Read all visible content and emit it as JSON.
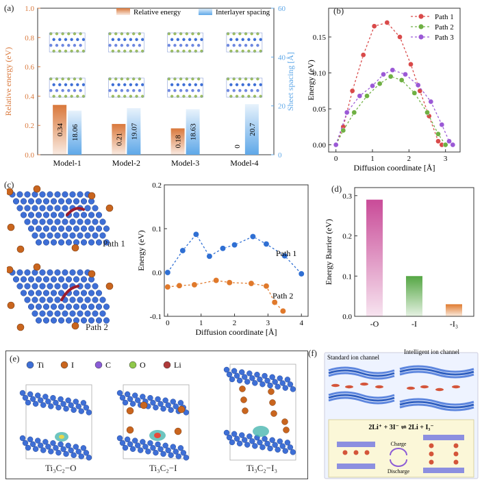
{
  "panel_labels": {
    "a": "(a)",
    "b": "(b)",
    "c": "(c)",
    "d": "(d)",
    "e": "(e)",
    "f": "(f)"
  },
  "colors": {
    "orange": "#d9783b",
    "blue": "#5fa8e8",
    "path1_b": "#d94a4a",
    "path2_b": "#6fb043",
    "path3_b": "#9b59d6",
    "path1_c": "#2f6fd3",
    "path2_c": "#e0792b",
    "bar_O": "#c94b98",
    "bar_I": "#55a644",
    "bar_I3": "#e07b2e"
  },
  "chart_data": [
    {
      "id": "a",
      "type": "bar",
      "title": "",
      "legend": [
        "Relative energy",
        "Interlayer spacing"
      ],
      "categories": [
        "Model-1",
        "Model-2",
        "Model-3",
        "Model-4"
      ],
      "series": [
        {
          "name": "Relative energy",
          "values": [
            0.34,
            0.21,
            0.18,
            0
          ],
          "labels": [
            "0.34",
            "0.21",
            "0.18",
            "0"
          ]
        },
        {
          "name": "Interlayer spacing",
          "values": [
            18.06,
            19.07,
            18.63,
            20.7
          ],
          "labels": [
            "18.06",
            "19.07",
            "18.63",
            "20.7"
          ]
        }
      ],
      "ylabel": "Relative energy (eV)",
      "y2label": "Sheet spacing [Å]",
      "ylim": [
        0,
        1.0
      ],
      "y2lim": [
        0,
        60
      ],
      "yticks": [
        "0.0",
        "0.2",
        "0.4",
        "0.6",
        "0.8",
        "1.0"
      ],
      "y2ticks": [
        "0",
        "20",
        "40",
        "60"
      ],
      "legend_position": "top"
    },
    {
      "id": "b",
      "type": "line",
      "xlabel": "Diffusion coordinate [Å]",
      "ylabel": "Energy (eV)",
      "xlim": [
        -0.2,
        3.4
      ],
      "ylim": [
        -0.01,
        0.19
      ],
      "xticks": [
        "0",
        "1",
        "2",
        "3"
      ],
      "yticks": [
        "0.00",
        "0.05",
        "0.10",
        "0.15"
      ],
      "legend_position": "top-right",
      "series": [
        {
          "name": "Path 1",
          "x": [
            0,
            0.2,
            0.45,
            0.75,
            1.05,
            1.4,
            1.75,
            2.05,
            2.3,
            2.55,
            2.8,
            2.9
          ],
          "y": [
            0,
            0.025,
            0.075,
            0.125,
            0.165,
            0.17,
            0.15,
            0.112,
            0.075,
            0.04,
            0.005,
            0
          ]
        },
        {
          "name": "Path 2",
          "x": [
            0,
            0.2,
            0.5,
            0.85,
            1.2,
            1.5,
            1.8,
            2.15,
            2.5,
            2.8,
            3.0
          ],
          "y": [
            0,
            0.02,
            0.045,
            0.068,
            0.085,
            0.095,
            0.09,
            0.072,
            0.045,
            0.015,
            0
          ]
        },
        {
          "name": "Path 3",
          "x": [
            0,
            0.3,
            0.65,
            1.0,
            1.3,
            1.55,
            1.9,
            2.25,
            2.6,
            2.9,
            3.1,
            3.2
          ],
          "y": [
            0,
            0.045,
            0.068,
            0.082,
            0.098,
            0.104,
            0.098,
            0.083,
            0.06,
            0.028,
            0.005,
            0
          ]
        }
      ]
    },
    {
      "id": "c",
      "type": "line",
      "xlabel": "Diffusion coordinate [Å]",
      "ylabel": "Energy (eV)",
      "xlim": [
        -0.1,
        4.2
      ],
      "ylim": [
        -0.1,
        0.2
      ],
      "xticks": [
        "0",
        "1",
        "2",
        "3",
        "4"
      ],
      "yticks": [
        "-0.1",
        "0.0",
        "0.1",
        "0.2"
      ],
      "series": [
        {
          "name": "Path 1",
          "x": [
            0,
            0.45,
            0.85,
            1.25,
            1.65,
            2.0,
            2.55,
            2.95,
            3.5,
            4.0
          ],
          "y": [
            0,
            0.05,
            0.087,
            0.037,
            0.055,
            0.063,
            0.082,
            0.065,
            0.038,
            -0.003
          ]
        },
        {
          "name": "Path 2",
          "x": [
            0,
            0.35,
            0.8,
            1.45,
            1.85,
            2.5,
            2.95,
            3.2,
            3.45
          ],
          "y": [
            -0.033,
            -0.03,
            -0.028,
            -0.018,
            -0.023,
            -0.025,
            -0.031,
            -0.068,
            -0.088
          ]
        }
      ],
      "annotations": [
        "Path 1",
        "Path 2"
      ]
    },
    {
      "id": "d",
      "type": "bar",
      "categories": [
        "-O",
        "-I",
        "-I₃"
      ],
      "values": [
        0.29,
        0.1,
        0.03
      ],
      "ylabel": "Energy Barrier (eV)",
      "ylim": [
        0,
        0.32
      ],
      "yticks": [
        "0.0",
        "0.1",
        "0.2",
        "0.3"
      ]
    }
  ],
  "panel_c": {
    "path1_label": "Path 1",
    "path2_label": "Path 2"
  },
  "panel_e": {
    "legend": [
      {
        "symbol": "Ti",
        "color": "#3e6fd6"
      },
      {
        "symbol": "I",
        "color": "#c9651e"
      },
      {
        "symbol": "C",
        "color": "#8a5cd6"
      },
      {
        "symbol": "O",
        "color": "#8fc84a"
      },
      {
        "symbol": "Li",
        "color": "#b03a3a"
      }
    ],
    "captions": [
      "Ti₃C₂−O",
      "Ti₃C₂−I",
      "Ti₃C₂−I₃"
    ]
  },
  "panel_f": {
    "standard_label": "Standard ion channel",
    "intelligent_label": "Intelligent ion channel",
    "equation": "2Li⁺ + 3I⁻ ⇌ 2Li + I₃⁻",
    "charge": "Charge",
    "discharge": "Discharge"
  }
}
